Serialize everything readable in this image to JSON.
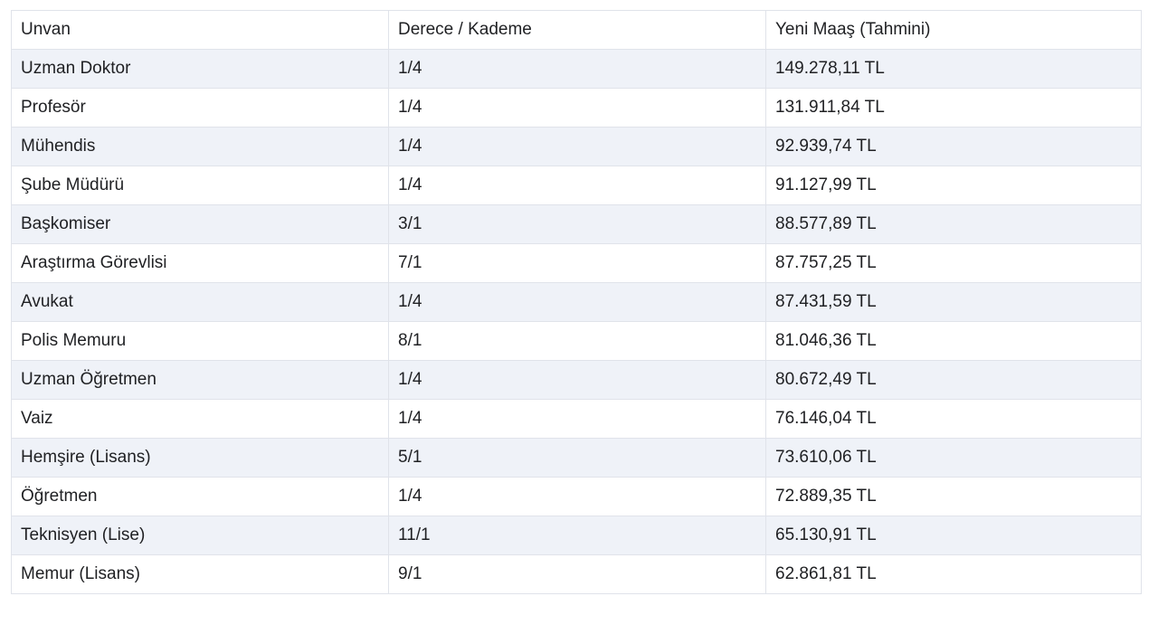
{
  "page": {
    "background": "#ffffff"
  },
  "table": {
    "colors": {
      "stripe": "#eff2f8",
      "border": "#e0e3ea",
      "text": "#1f2023"
    },
    "columns": [
      {
        "key": "unvan",
        "label": "Unvan"
      },
      {
        "key": "derece_kademe",
        "label": "Derece / Kademe"
      },
      {
        "key": "yeni_maas",
        "label": "Yeni Maaş (Tahmini)"
      }
    ],
    "rows": [
      {
        "unvan": "Uzman Doktor",
        "derece_kademe": "1/4",
        "yeni_maas": "149.278,11 TL"
      },
      {
        "unvan": "Profesör",
        "derece_kademe": "1/4",
        "yeni_maas": "131.911,84 TL"
      },
      {
        "unvan": "Mühendis",
        "derece_kademe": "1/4",
        "yeni_maas": "92.939,74 TL"
      },
      {
        "unvan": "Şube Müdürü",
        "derece_kademe": "1/4",
        "yeni_maas": "91.127,99 TL"
      },
      {
        "unvan": "Başkomiser",
        "derece_kademe": "3/1",
        "yeni_maas": "88.577,89 TL"
      },
      {
        "unvan": "Araştırma Görevlisi",
        "derece_kademe": "7/1",
        "yeni_maas": "87.757,25 TL"
      },
      {
        "unvan": "Avukat",
        "derece_kademe": "1/4",
        "yeni_maas": "87.431,59 TL"
      },
      {
        "unvan": "Polis Memuru",
        "derece_kademe": "8/1",
        "yeni_maas": "81.046,36 TL"
      },
      {
        "unvan": "Uzman Öğretmen",
        "derece_kademe": "1/4",
        "yeni_maas": "80.672,49 TL"
      },
      {
        "unvan": "Vaiz",
        "derece_kademe": "1/4",
        "yeni_maas": "76.146,04 TL"
      },
      {
        "unvan": "Hemşire (Lisans)",
        "derece_kademe": "5/1",
        "yeni_maas": "73.610,06 TL"
      },
      {
        "unvan": "Öğretmen",
        "derece_kademe": "1/4",
        "yeni_maas": "72.889,35 TL"
      },
      {
        "unvan": "Teknisyen (Lise)",
        "derece_kademe": "11/1",
        "yeni_maas": "65.130,91 TL"
      },
      {
        "unvan": "Memur (Lisans)",
        "derece_kademe": "9/1",
        "yeni_maas": "62.861,81 TL"
      }
    ]
  },
  "chart_data": {
    "type": "table",
    "title": "Yeni Maaş (Tahmini)",
    "columns": [
      "Unvan",
      "Derece / Kademe",
      "Yeni Maaş (Tahmini)"
    ],
    "categories": [
      "Uzman Doktor",
      "Profesör",
      "Mühendis",
      "Şube Müdürü",
      "Başkomiser",
      "Araştırma Görevlisi",
      "Avukat",
      "Polis Memuru",
      "Uzman Öğretmen",
      "Vaiz",
      "Hemşire (Lisans)",
      "Öğretmen",
      "Teknisyen (Lise)",
      "Memur (Lisans)"
    ],
    "derece_kademe": [
      "1/4",
      "1/4",
      "1/4",
      "1/4",
      "3/1",
      "7/1",
      "1/4",
      "8/1",
      "1/4",
      "1/4",
      "5/1",
      "1/4",
      "11/1",
      "9/1"
    ],
    "values_tl": [
      149278.11,
      131911.84,
      92939.74,
      91127.99,
      88577.89,
      87757.25,
      87431.59,
      81046.36,
      80672.49,
      76146.04,
      73610.06,
      72889.35,
      65130.91,
      62861.81
    ]
  }
}
